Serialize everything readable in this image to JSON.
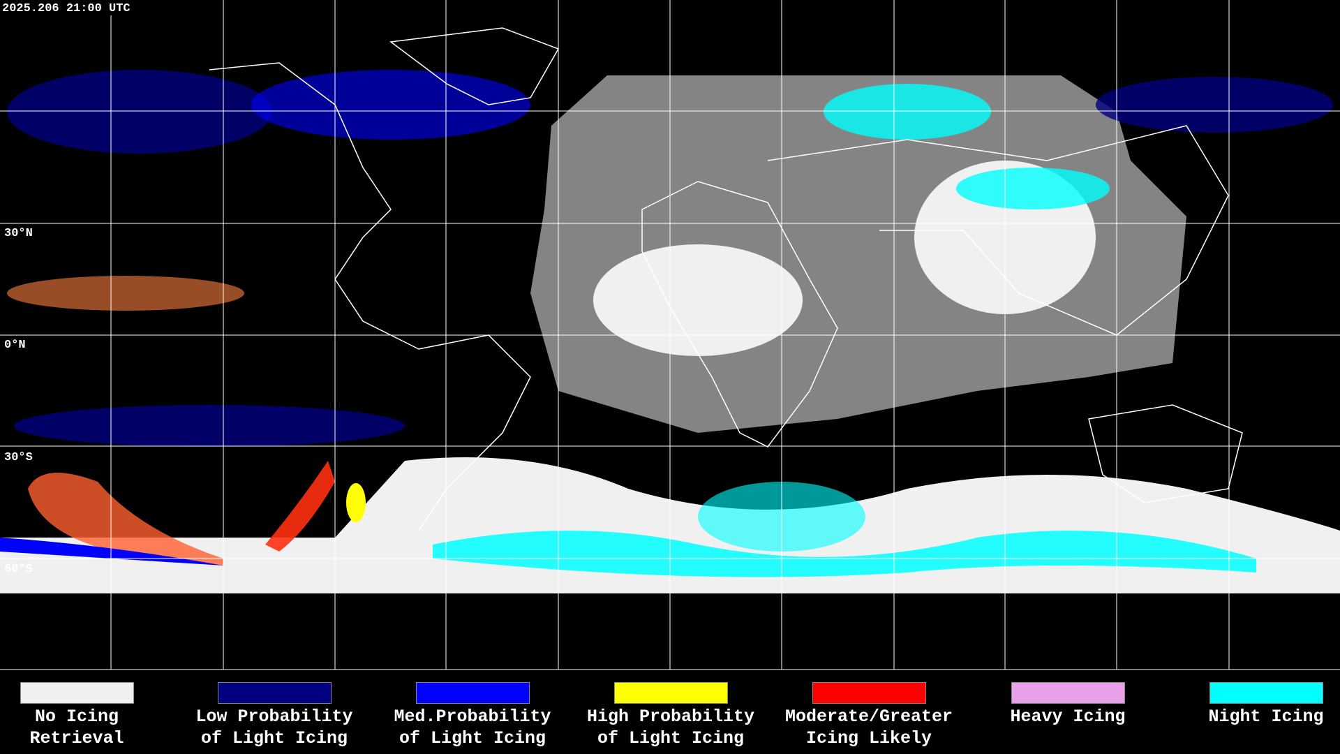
{
  "header": {
    "title": "2025.206 21:00 UTC"
  },
  "map": {
    "latitude_labels": [
      "30°N",
      "0°N",
      "30°S",
      "60°S"
    ]
  },
  "legend": {
    "items": [
      {
        "label": [
          "No Icing",
          "Retrieval"
        ],
        "color": "#f0f0f0"
      },
      {
        "label": [
          "Low Probability",
          "of Light Icing"
        ],
        "color": "#000080"
      },
      {
        "label": [
          "Med.Probability",
          "of Light Icing"
        ],
        "color": "#0000ff"
      },
      {
        "label": [
          "High Probability",
          "of Light Icing"
        ],
        "color": "#ffff00"
      },
      {
        "label": [
          "Moderate/Greater",
          "Icing Likely"
        ],
        "color": "#ff0000"
      },
      {
        "label": [
          "Heavy Icing"
        ],
        "color": "#e8a0e8"
      },
      {
        "label": [
          "Night Icing"
        ],
        "color": "#00ffff"
      }
    ]
  }
}
